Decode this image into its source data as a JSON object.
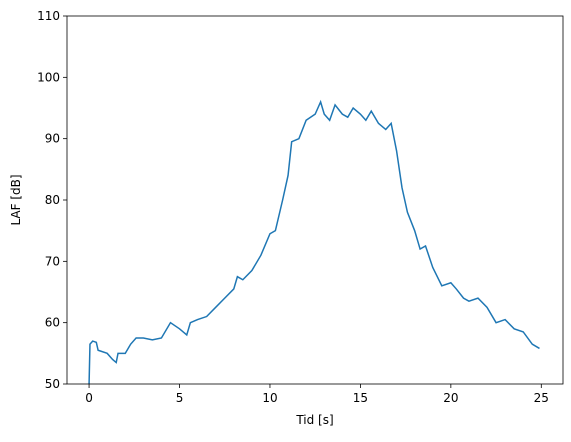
{
  "chart_data": {
    "type": "line",
    "xlabel": "Tid [s]",
    "ylabel": "LAF [dB]",
    "x": [
      0,
      0.05,
      0.2,
      0.4,
      0.5,
      1.0,
      1.3,
      1.5,
      1.6,
      2.0,
      2.3,
      2.6,
      3.0,
      3.5,
      4.0,
      4.5,
      5.0,
      5.4,
      5.6,
      6.0,
      6.5,
      7.0,
      7.5,
      8.0,
      8.2,
      8.5,
      9.0,
      9.5,
      10.0,
      10.3,
      10.7,
      11.0,
      11.2,
      11.6,
      12.0,
      12.5,
      12.8,
      13.0,
      13.3,
      13.6,
      14.0,
      14.3,
      14.6,
      15.0,
      15.3,
      15.6,
      16.0,
      16.4,
      16.7,
      17.0,
      17.3,
      17.6,
      18.0,
      18.3,
      18.6,
      19.0,
      19.5,
      20.0,
      20.3,
      20.7,
      21.0,
      21.5,
      22.0,
      22.5,
      23.0,
      23.5,
      24.0,
      24.5,
      24.9
    ],
    "series": [
      {
        "name": "LAF",
        "color": "#1f77b4",
        "values": [
          50,
          56.5,
          57,
          56.8,
          55.5,
          55,
          54,
          53.5,
          55,
          55,
          56.5,
          57.5,
          57.5,
          57.2,
          57.5,
          60,
          59,
          58,
          60,
          60.5,
          61,
          62.5,
          64,
          65.5,
          67.5,
          67,
          68.5,
          71,
          74.5,
          75,
          80,
          84,
          89.5,
          90,
          93,
          94,
          96,
          94,
          93,
          95.5,
          94,
          93.5,
          95,
          94,
          93,
          94.5,
          92.5,
          91.5,
          92.5,
          88,
          82,
          78,
          75,
          72,
          72.5,
          69,
          66,
          66.5,
          65.5,
          64,
          63.5,
          64,
          62.5,
          60,
          60.5,
          59,
          58.5,
          56.5,
          55.8
        ]
      }
    ],
    "xlim": [
      -1.22,
      26.2
    ],
    "xticks": [
      0,
      5,
      10,
      15,
      20,
      25
    ],
    "ylim": [
      50,
      110
    ],
    "yticks": [
      50,
      60,
      70,
      80,
      90,
      100,
      110
    ]
  }
}
